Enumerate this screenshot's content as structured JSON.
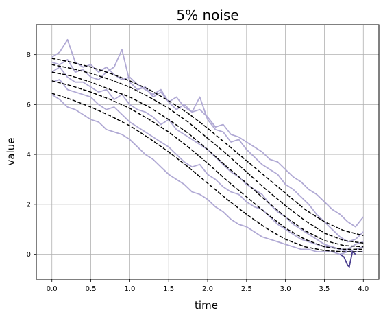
{
  "chart_data": {
    "type": "line",
    "title": "5% noise",
    "xlabel": "time",
    "ylabel": "value",
    "xlim": [
      -0.2,
      4.2
    ],
    "ylim": [
      -1.0,
      9.2
    ],
    "xticks": [
      "0.0",
      "0.5",
      "1.0",
      "1.5",
      "2.0",
      "2.5",
      "3.0",
      "3.5",
      "4.0"
    ],
    "yticks": [
      "0",
      "2",
      "4",
      "6",
      "8"
    ],
    "grid": true,
    "colors": {
      "noisy": "#b0a9d4",
      "noisy_dark": "#4b3f8f",
      "reference": "#000000",
      "grid": "#b0b0b0"
    },
    "series": [
      {
        "kind": "reference",
        "x": [
          0,
          0.25,
          0.5,
          0.75,
          1,
          1.25,
          1.5,
          1.75,
          2,
          2.25,
          2.5,
          2.75,
          3,
          3.25,
          3.5,
          3.75,
          4
        ],
        "values": [
          7.85,
          7.7,
          7.5,
          7.25,
          6.95,
          6.6,
          6.15,
          5.65,
          5.05,
          4.4,
          3.75,
          3.1,
          2.45,
          1.8,
          1.3,
          0.95,
          0.75
        ]
      },
      {
        "kind": "reference",
        "x": [
          0,
          0.25,
          0.5,
          0.75,
          1,
          1.25,
          1.5,
          1.75,
          2,
          2.25,
          2.5,
          2.75,
          3,
          3.25,
          3.5,
          3.75,
          4
        ],
        "values": [
          7.6,
          7.45,
          7.25,
          7.0,
          6.7,
          6.3,
          5.85,
          5.3,
          4.65,
          4.0,
          3.3,
          2.6,
          1.95,
          1.35,
          0.85,
          0.55,
          0.45
        ]
      },
      {
        "kind": "reference",
        "x": [
          0,
          0.25,
          0.5,
          0.75,
          1,
          1.25,
          1.5,
          1.75,
          2,
          2.25,
          2.5,
          2.75,
          3,
          3.25,
          3.5,
          3.75,
          4
        ],
        "values": [
          7.3,
          7.15,
          6.9,
          6.6,
          6.3,
          5.9,
          5.4,
          4.85,
          4.2,
          3.5,
          2.85,
          2.15,
          1.5,
          0.95,
          0.55,
          0.35,
          0.3
        ]
      },
      {
        "kind": "reference",
        "x": [
          0,
          0.25,
          0.5,
          0.75,
          1,
          1.25,
          1.5,
          1.75,
          2,
          2.25,
          2.5,
          2.75,
          3,
          3.25,
          3.5,
          3.75,
          4
        ],
        "values": [
          6.95,
          6.75,
          6.5,
          6.2,
          5.85,
          5.4,
          4.9,
          4.3,
          3.65,
          2.95,
          2.3,
          1.65,
          1.05,
          0.6,
          0.3,
          0.2,
          0.2
        ]
      },
      {
        "kind": "reference",
        "x": [
          0,
          0.25,
          0.5,
          0.75,
          1,
          1.25,
          1.5,
          1.75,
          2,
          2.25,
          2.5,
          2.75,
          3,
          3.25,
          3.5,
          3.75,
          4
        ],
        "values": [
          6.45,
          6.2,
          5.9,
          5.55,
          5.15,
          4.65,
          4.1,
          3.5,
          2.85,
          2.2,
          1.6,
          1.05,
          0.6,
          0.3,
          0.15,
          0.1,
          0.1
        ]
      },
      {
        "kind": "noisy",
        "x": [
          0,
          0.1,
          0.2,
          0.3,
          0.4,
          0.5,
          0.6,
          0.7,
          0.8,
          0.9,
          1.0,
          1.1,
          1.2,
          1.3,
          1.4,
          1.5,
          1.6,
          1.7,
          1.8,
          1.9,
          2.0,
          2.1,
          2.2,
          2.3,
          2.4,
          2.5,
          2.6,
          2.7,
          2.8,
          2.9,
          3.0,
          3.1,
          3.2,
          3.3,
          3.4,
          3.5,
          3.6,
          3.7,
          3.8,
          3.9,
          4.0
        ],
        "values": [
          7.9,
          8.1,
          8.6,
          7.7,
          7.5,
          7.6,
          7.3,
          7.5,
          7.2,
          7.0,
          7.1,
          6.8,
          6.6,
          6.4,
          6.6,
          6.1,
          6.3,
          5.9,
          5.7,
          5.8,
          5.5,
          5.1,
          5.2,
          4.8,
          4.7,
          4.5,
          4.3,
          4.1,
          3.8,
          3.7,
          3.4,
          3.1,
          2.9,
          2.6,
          2.4,
          2.1,
          1.8,
          1.6,
          1.3,
          1.1,
          1.5
        ]
      },
      {
        "kind": "noisy",
        "x": [
          0,
          0.1,
          0.2,
          0.3,
          0.4,
          0.5,
          0.6,
          0.7,
          0.8,
          0.9,
          1.0,
          1.1,
          1.2,
          1.3,
          1.4,
          1.5,
          1.6,
          1.7,
          1.8,
          1.9,
          2.0,
          2.1,
          2.2,
          2.3,
          2.4,
          2.5,
          2.6,
          2.7,
          2.8,
          2.9,
          3.0,
          3.1,
          3.2,
          3.3,
          3.4,
          3.5,
          3.6,
          3.7,
          3.8,
          3.9,
          4.0
        ],
        "values": [
          7.7,
          7.6,
          7.8,
          7.3,
          7.4,
          7.1,
          7.0,
          7.3,
          7.5,
          8.2,
          6.9,
          6.6,
          6.7,
          6.3,
          6.5,
          6.1,
          5.8,
          6.0,
          5.7,
          6.3,
          5.4,
          5.0,
          4.9,
          4.5,
          4.6,
          4.2,
          3.9,
          3.6,
          3.4,
          3.2,
          2.8,
          2.6,
          2.3,
          2.0,
          1.6,
          1.3,
          1.0,
          0.7,
          0.5,
          0.6,
          0.9
        ]
      },
      {
        "kind": "noisy",
        "x": [
          0,
          0.1,
          0.2,
          0.3,
          0.4,
          0.5,
          0.6,
          0.7,
          0.8,
          0.9,
          1.0,
          1.1,
          1.2,
          1.3,
          1.4,
          1.5,
          1.6,
          1.7,
          1.8,
          1.9,
          2.0,
          2.1,
          2.2,
          2.3,
          2.4,
          2.5,
          2.6,
          2.7,
          2.8,
          2.9,
          3.0,
          3.1,
          3.2,
          3.3,
          3.4,
          3.5,
          3.6,
          3.7,
          3.8,
          3.9,
          4.0
        ],
        "values": [
          7.3,
          7.5,
          7.1,
          6.9,
          6.9,
          6.7,
          6.5,
          6.6,
          6.2,
          6.4,
          6.0,
          5.8,
          5.7,
          5.5,
          5.2,
          5.4,
          5.0,
          4.8,
          4.6,
          4.4,
          4.2,
          3.9,
          3.6,
          3.3,
          3.1,
          2.8,
          2.6,
          2.4,
          2.0,
          1.7,
          1.5,
          1.2,
          1.0,
          0.8,
          0.6,
          0.4,
          0.3,
          0.2,
          0.2,
          0.4,
          0.5
        ]
      },
      {
        "kind": "noisy",
        "x": [
          0,
          0.1,
          0.2,
          0.3,
          0.4,
          0.5,
          0.6,
          0.7,
          0.8,
          0.9,
          1.0,
          1.1,
          1.2,
          1.3,
          1.4,
          1.5,
          1.6,
          1.7,
          1.8,
          1.9,
          2.0,
          2.1,
          2.2,
          2.3,
          2.4,
          2.5,
          2.6,
          2.7,
          2.8,
          2.9,
          3.0,
          3.1,
          3.2,
          3.3,
          3.4,
          3.5,
          3.6,
          3.7,
          3.8,
          3.9,
          4.0
        ],
        "values": [
          6.9,
          7.0,
          6.6,
          6.5,
          6.4,
          6.3,
          6.0,
          5.8,
          5.9,
          5.6,
          5.3,
          5.1,
          4.9,
          4.7,
          4.5,
          4.3,
          4.0,
          3.7,
          3.5,
          3.6,
          3.2,
          3.0,
          2.7,
          2.5,
          2.4,
          2.1,
          1.9,
          1.8,
          1.5,
          1.2,
          1.0,
          0.8,
          0.6,
          0.5,
          0.4,
          0.3,
          0.3,
          0.2,
          0.1,
          0.2,
          0.3
        ]
      },
      {
        "kind": "noisy",
        "x": [
          0,
          0.1,
          0.2,
          0.3,
          0.4,
          0.5,
          0.6,
          0.7,
          0.8,
          0.9,
          1.0,
          1.1,
          1.2,
          1.3,
          1.4,
          1.5,
          1.6,
          1.7,
          1.8,
          1.9,
          2.0,
          2.1,
          2.2,
          2.3,
          2.4,
          2.5,
          2.6,
          2.7,
          2.8,
          2.9,
          3.0,
          3.1,
          3.2,
          3.3,
          3.4,
          3.5,
          3.6,
          3.7,
          3.8,
          3.9,
          4.0
        ],
        "values": [
          6.4,
          6.2,
          5.9,
          5.8,
          5.6,
          5.4,
          5.3,
          5.0,
          4.9,
          4.8,
          4.6,
          4.3,
          4.0,
          3.8,
          3.5,
          3.2,
          3.0,
          2.8,
          2.5,
          2.4,
          2.2,
          1.9,
          1.7,
          1.4,
          1.2,
          1.1,
          0.9,
          0.7,
          0.6,
          0.5,
          0.4,
          0.3,
          0.2,
          0.2,
          0.1,
          0.1,
          0.1,
          0.0,
          0.1,
          0.1,
          0.1
        ]
      },
      {
        "kind": "noisy_dark",
        "x": [
          3.7,
          3.75,
          3.8,
          3.82,
          3.84,
          3.86,
          3.9
        ],
        "values": [
          0.0,
          -0.1,
          -0.45,
          -0.5,
          -0.2,
          0.1,
          0.0
        ]
      }
    ]
  }
}
